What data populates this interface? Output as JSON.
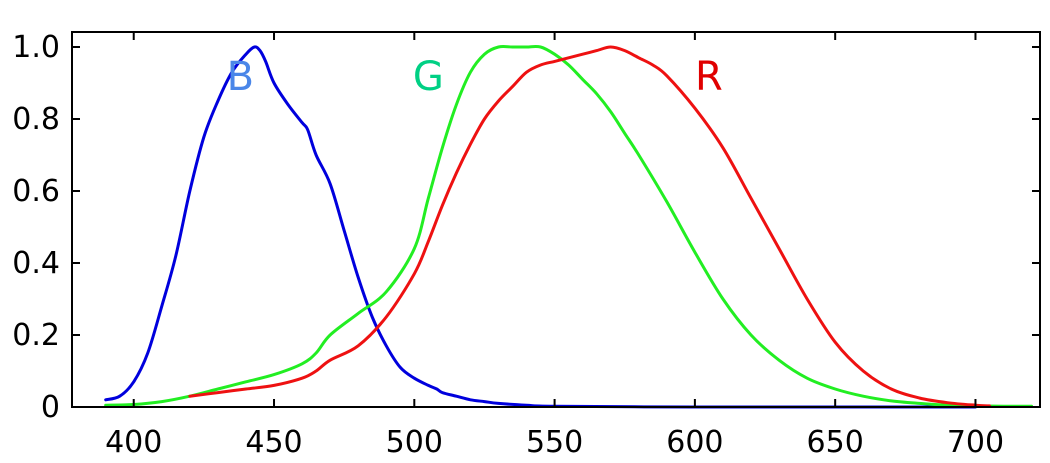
{
  "chart_data": {
    "type": "line",
    "title": "",
    "xlabel": "",
    "ylabel": "",
    "xlim": [
      378,
      723
    ],
    "ylim": [
      0,
      1.0
    ],
    "grid": false,
    "legend": "none",
    "x_ticks": [
      400,
      450,
      500,
      550,
      600,
      650,
      700
    ],
    "x_tick_labels": [
      "400",
      "450",
      "500",
      "550",
      "600",
      "650",
      "700"
    ],
    "y_ticks": [
      0,
      0.2,
      0.4,
      0.6,
      0.8,
      1.0
    ],
    "y_tick_labels": [
      "0",
      "0.2",
      "0.4",
      "0.6",
      "0.8",
      "1.0"
    ],
    "annotations": [
      {
        "text": "B",
        "x": 438,
        "y": 0.92,
        "color": "#4a86e8"
      },
      {
        "text": "G",
        "x": 505,
        "y": 0.92,
        "color": "#00d084"
      },
      {
        "text": "R",
        "x": 605,
        "y": 0.92,
        "color": "#e00000"
      }
    ],
    "series": [
      {
        "key": "blue",
        "color": "#0000dd",
        "x": [
          390,
          395,
          400,
          405,
          410,
          415,
          420,
          425,
          430,
          435,
          440,
          443,
          445,
          447,
          450,
          455,
          460,
          462,
          465,
          470,
          475,
          480,
          485,
          490,
          495,
          500,
          505,
          508,
          510,
          515,
          520,
          525,
          530,
          540,
          550,
          600,
          650,
          700
        ],
        "values": [
          0.02,
          0.03,
          0.07,
          0.15,
          0.28,
          0.42,
          0.6,
          0.75,
          0.85,
          0.93,
          0.98,
          1.0,
          0.99,
          0.96,
          0.9,
          0.84,
          0.79,
          0.77,
          0.7,
          0.62,
          0.49,
          0.36,
          0.25,
          0.17,
          0.11,
          0.08,
          0.06,
          0.05,
          0.04,
          0.03,
          0.02,
          0.015,
          0.01,
          0.005,
          0.002,
          0.0,
          0.0,
          0.0
        ]
      },
      {
        "key": "green",
        "color": "#22ee22",
        "x": [
          390,
          400,
          410,
          420,
          430,
          440,
          450,
          460,
          465,
          470,
          480,
          490,
          500,
          505,
          510,
          515,
          520,
          525,
          530,
          535,
          540,
          545,
          550,
          555,
          560,
          565,
          570,
          575,
          580,
          590,
          600,
          610,
          620,
          630,
          640,
          650,
          660,
          670,
          680,
          690,
          700,
          710,
          720
        ],
        "values": [
          0.005,
          0.007,
          0.015,
          0.03,
          0.05,
          0.07,
          0.09,
          0.12,
          0.15,
          0.2,
          0.26,
          0.32,
          0.44,
          0.58,
          0.72,
          0.84,
          0.93,
          0.98,
          1.0,
          1.0,
          1.0,
          1.0,
          0.98,
          0.95,
          0.91,
          0.87,
          0.82,
          0.76,
          0.7,
          0.57,
          0.43,
          0.3,
          0.2,
          0.13,
          0.08,
          0.05,
          0.03,
          0.017,
          0.01,
          0.005,
          0.003,
          0.002,
          0.002
        ]
      },
      {
        "key": "red",
        "color": "#ee1111",
        "x": [
          420,
          430,
          440,
          450,
          460,
          465,
          470,
          480,
          490,
          500,
          505,
          510,
          515,
          520,
          525,
          530,
          535,
          540,
          545,
          550,
          555,
          560,
          565,
          570,
          575,
          580,
          585,
          590,
          600,
          610,
          620,
          630,
          640,
          650,
          660,
          670,
          680,
          690,
          700,
          705
        ],
        "values": [
          0.03,
          0.04,
          0.05,
          0.06,
          0.08,
          0.1,
          0.13,
          0.17,
          0.25,
          0.37,
          0.46,
          0.56,
          0.65,
          0.73,
          0.8,
          0.85,
          0.89,
          0.93,
          0.95,
          0.96,
          0.97,
          0.98,
          0.99,
          1.0,
          0.99,
          0.97,
          0.95,
          0.92,
          0.83,
          0.72,
          0.58,
          0.44,
          0.3,
          0.18,
          0.1,
          0.05,
          0.025,
          0.012,
          0.005,
          0.003
        ]
      }
    ]
  }
}
